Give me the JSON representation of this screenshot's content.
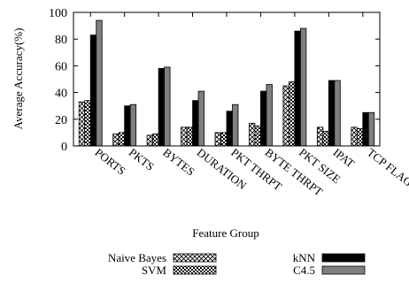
{
  "chart_data": {
    "type": "bar",
    "title": "",
    "xlabel": "Feature Group",
    "ylabel": "Average Accuracy(%)",
    "ylim": [
      0,
      100
    ],
    "yticks": [
      0,
      20,
      40,
      60,
      80,
      100
    ],
    "grid": false,
    "legend_position": "bottom",
    "categories": [
      "PORTS",
      "PKTS",
      "BYTES",
      "DURATION",
      "PKT THRPT",
      "BYTE THRPT",
      "PKT SIZE",
      "IPAT",
      "TCP FLAG"
    ],
    "series": [
      {
        "name": "Naive Bayes",
        "pattern": "crosshatch",
        "values": [
          33,
          9,
          8,
          14,
          10,
          17,
          45,
          14,
          14
        ]
      },
      {
        "name": "SVM",
        "pattern": "checker",
        "values": [
          34,
          10,
          9,
          14,
          10,
          15,
          48,
          11,
          13
        ]
      },
      {
        "name": "kNN",
        "color": "#000000",
        "values": [
          83,
          30,
          58,
          34,
          26,
          41,
          86,
          49,
          25
        ]
      },
      {
        "name": "C4.5",
        "color": "#7f7f7f",
        "values": [
          94,
          31,
          59,
          41,
          31,
          46,
          88,
          49,
          25
        ]
      }
    ]
  }
}
